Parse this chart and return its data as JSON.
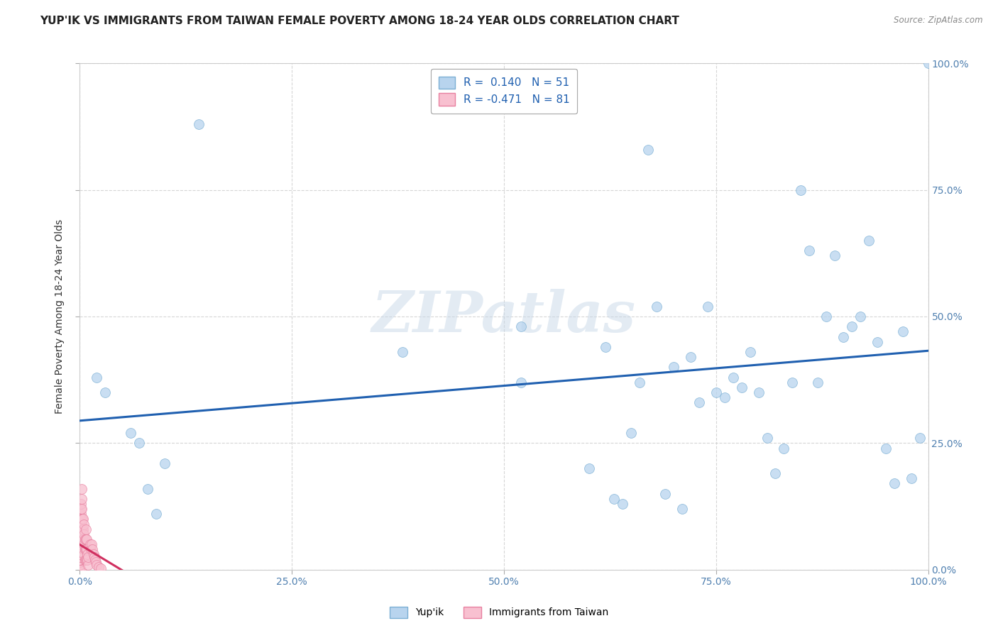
{
  "title": "YUP'IK VS IMMIGRANTS FROM TAIWAN FEMALE POVERTY AMONG 18-24 YEAR OLDS CORRELATION CHART",
  "source": "Source: ZipAtlas.com",
  "ylabel": "Female Poverty Among 18-24 Year Olds",
  "watermark": "ZIPatlas",
  "xlim": [
    0,
    1
  ],
  "ylim": [
    0,
    1
  ],
  "xticks": [
    0.0,
    0.25,
    0.5,
    0.75,
    1.0
  ],
  "yticks": [
    0.0,
    0.25,
    0.5,
    0.75,
    1.0
  ],
  "xticklabels": [
    "0.0%",
    "25.0%",
    "50.0%",
    "75.0%",
    "100.0%"
  ],
  "yticklabels_right": [
    "0.0%",
    "25.0%",
    "50.0%",
    "75.0%",
    "100.0%"
  ],
  "series": [
    {
      "name": "Yup'ik",
      "R": 0.14,
      "N": 51,
      "color": "#b8d4ee",
      "edge_color": "#7bafd4",
      "line_color": "#2060b0",
      "x": [
        0.02,
        0.03,
        0.14,
        0.38,
        0.52,
        0.52,
        0.6,
        0.62,
        0.65,
        0.67,
        0.68,
        0.7,
        0.72,
        0.73,
        0.74,
        0.75,
        0.76,
        0.77,
        0.78,
        0.79,
        0.8,
        0.81,
        0.82,
        0.83,
        0.84,
        0.85,
        0.86,
        0.87,
        0.88,
        0.89,
        0.9,
        0.91,
        0.92,
        0.93,
        0.94,
        0.95,
        0.96,
        0.97,
        0.98,
        0.99,
        1.0,
        0.06,
        0.07,
        0.08,
        0.09,
        0.1,
        0.63,
        0.64,
        0.66,
        0.69,
        0.71
      ],
      "y": [
        0.38,
        0.35,
        0.88,
        0.43,
        0.48,
        0.37,
        0.2,
        0.44,
        0.27,
        0.83,
        0.52,
        0.4,
        0.42,
        0.33,
        0.52,
        0.35,
        0.34,
        0.38,
        0.36,
        0.43,
        0.35,
        0.26,
        0.19,
        0.24,
        0.37,
        0.75,
        0.63,
        0.37,
        0.5,
        0.62,
        0.46,
        0.48,
        0.5,
        0.65,
        0.45,
        0.24,
        0.17,
        0.47,
        0.18,
        0.26,
        1.0,
        0.27,
        0.25,
        0.16,
        0.11,
        0.21,
        0.14,
        0.13,
        0.37,
        0.15,
        0.12
      ]
    },
    {
      "name": "Immigrants from Taiwan",
      "R": -0.471,
      "N": 81,
      "color": "#f8c0d0",
      "edge_color": "#e880a0",
      "line_color": "#d03060",
      "x": [
        0.0,
        0.0,
        0.0,
        0.0,
        0.0,
        0.0,
        0.0,
        0.0,
        0.0,
        0.0,
        0.0,
        0.0,
        0.0,
        0.0,
        0.0,
        0.0,
        0.0,
        0.0,
        0.0,
        0.0,
        0.0,
        0.0,
        0.0,
        0.0,
        0.0,
        0.001,
        0.001,
        0.001,
        0.001,
        0.001,
        0.001,
        0.001,
        0.001,
        0.001,
        0.001,
        0.001,
        0.001,
        0.001,
        0.002,
        0.002,
        0.002,
        0.002,
        0.002,
        0.002,
        0.002,
        0.003,
        0.003,
        0.003,
        0.004,
        0.004,
        0.004,
        0.004,
        0.005,
        0.005,
        0.005,
        0.005,
        0.006,
        0.006,
        0.006,
        0.007,
        0.007,
        0.007,
        0.007,
        0.008,
        0.008,
        0.008,
        0.009,
        0.009,
        0.01,
        0.01,
        0.012,
        0.013,
        0.014,
        0.015,
        0.016,
        0.017,
        0.018,
        0.019,
        0.02,
        0.022,
        0.025
      ],
      "y": [
        0.0,
        0.0,
        0.0,
        0.0,
        0.0,
        0.0,
        0.0,
        0.0,
        0.0,
        0.01,
        0.01,
        0.01,
        0.015,
        0.015,
        0.02,
        0.02,
        0.02,
        0.025,
        0.025,
        0.025,
        0.025,
        0.03,
        0.03,
        0.03,
        0.035,
        0.0,
        0.05,
        0.05,
        0.06,
        0.06,
        0.06,
        0.07,
        0.08,
        0.09,
        0.1,
        0.11,
        0.12,
        0.13,
        0.05,
        0.07,
        0.09,
        0.1,
        0.12,
        0.14,
        0.16,
        0.06,
        0.08,
        0.1,
        0.04,
        0.06,
        0.08,
        0.1,
        0.03,
        0.05,
        0.07,
        0.09,
        0.02,
        0.04,
        0.06,
        0.02,
        0.04,
        0.06,
        0.08,
        0.02,
        0.04,
        0.06,
        0.02,
        0.03,
        0.01,
        0.025,
        0.05,
        0.04,
        0.05,
        0.04,
        0.03,
        0.025,
        0.02,
        0.015,
        0.01,
        0.005,
        0.003
      ]
    }
  ],
  "background_color": "#ffffff",
  "grid_color": "#cccccc",
  "title_fontsize": 11,
  "axis_label_fontsize": 10,
  "tick_fontsize": 10,
  "marker_size": 100
}
